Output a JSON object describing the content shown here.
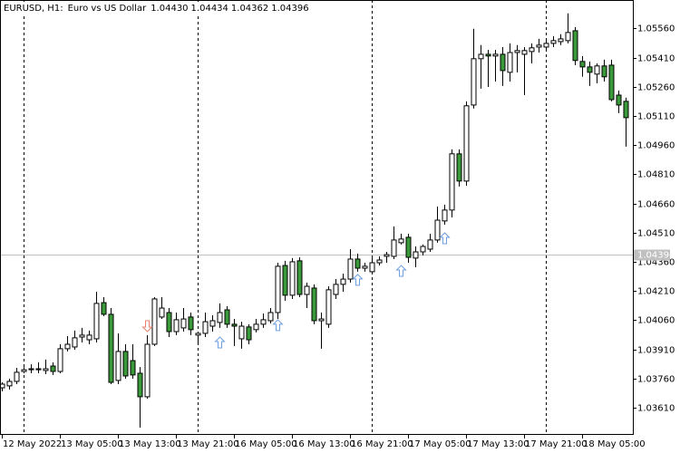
{
  "chart_data": {
    "type": "candlestick",
    "symbol": "EURUSD, H1:",
    "description": "Euro vs US Dollar",
    "ohlc_labels": [
      "1.04430",
      "1.04434",
      "1.04362",
      "1.04396"
    ],
    "categories": [
      "12 May 2022",
      null,
      null,
      null,
      null,
      null,
      null,
      null,
      "13 May 05:00",
      null,
      null,
      null,
      null,
      null,
      null,
      null,
      "13 May 13:00",
      null,
      null,
      null,
      null,
      null,
      null,
      null,
      "13 May 21:00",
      null,
      null,
      null,
      null,
      null,
      null,
      null,
      "16 May 05:00",
      null,
      null,
      null,
      null,
      null,
      null,
      null,
      "16 May 13:00",
      null,
      null,
      null,
      null,
      null,
      null,
      null,
      "16 May 21:00",
      null,
      null,
      null,
      null,
      null,
      null,
      null,
      "17 May 05:00",
      null,
      null,
      null,
      null,
      null,
      null,
      null,
      "17 May 13:00",
      null,
      null,
      null,
      null,
      null,
      null,
      null,
      "17 May 21:00",
      null,
      null,
      null,
      null,
      null,
      null,
      null,
      "18 May 05:00",
      null,
      null,
      null,
      null,
      null,
      null
    ],
    "open": [
      1.03712,
      1.03722,
      1.03745,
      1.03796,
      1.03805,
      1.03805,
      1.03801,
      1.03824,
      1.03796,
      1.03913,
      1.03922,
      1.03973,
      1.03959,
      1.03964,
      1.0415,
      1.0409,
      1.0375,
      1.03899,
      1.03852,
      1.03787,
      1.03666,
      1.03936,
      1.04076,
      1.04099,
      1.04001,
      1.0402,
      1.04076,
      1.03983,
      1.03992,
      1.04029,
      1.04048,
      1.04113,
      1.04039,
      1.03964,
      1.04025,
      1.04011,
      1.04039,
      1.04057,
      1.04099,
      1.04341,
      1.04188,
      1.04365,
      1.04192,
      1.04225,
      1.04057,
      1.04039,
      1.04192,
      1.04244,
      1.04271,
      1.04374,
      1.04327,
      1.04309,
      1.04355,
      1.04388,
      1.04388,
      1.04458,
      1.04486,
      1.04379,
      1.04411,
      1.04425,
      1.04472,
      1.0457,
      1.04626,
      1.04915,
      1.04775,
      1.05166,
      1.05404,
      1.05427,
      1.05418,
      1.05427,
      1.05334,
      1.05436,
      1.05427,
      1.05441,
      1.05464,
      1.05464,
      1.05483,
      1.05492,
      1.05497,
      1.05548,
      1.0539,
      1.05362,
      1.05325,
      1.05367,
      1.05371,
      1.05217,
      1.05185
    ],
    "high": [
      1.0374,
      1.03759,
      1.03815,
      1.03819,
      1.03833,
      1.03843,
      1.03857,
      1.03843,
      1.03936,
      1.03978,
      1.04006,
      1.0402,
      1.04006,
      1.04206,
      1.04178,
      1.04122,
      1.03992,
      1.03936,
      1.03936,
      1.03819,
      1.03983,
      1.04178,
      1.04178,
      1.04122,
      1.04099,
      1.04122,
      1.04099,
      1.04001,
      1.04099,
      1.04085,
      1.04146,
      1.04132,
      1.04066,
      1.04052,
      1.04039,
      1.04066,
      1.04094,
      1.04122,
      1.04355,
      1.04365,
      1.04379,
      1.04383,
      1.04253,
      1.04244,
      1.04099,
      1.04234,
      1.04271,
      1.04299,
      1.04425,
      1.04402,
      1.04355,
      1.04379,
      1.04388,
      1.04411,
      1.04542,
      1.04504,
      1.04504,
      1.04439,
      1.04449,
      1.04504,
      1.04644,
      1.04654,
      1.04938,
      1.04938,
      1.05185,
      1.05558,
      1.05474,
      1.0545,
      1.0545,
      1.05464,
      1.05483,
      1.05474,
      1.05464,
      1.05483,
      1.05506,
      1.05497,
      1.0552,
      1.0553,
      1.05637,
      1.05567,
      1.05418,
      1.0539,
      1.0538,
      1.05399,
      1.05399,
      1.05241,
      1.05204
    ],
    "low": [
      1.03694,
      1.03703,
      1.03731,
      1.03787,
      1.03787,
      1.03787,
      1.03782,
      1.03778,
      1.03787,
      1.03899,
      1.03908,
      1.03945,
      1.03936,
      1.03945,
      1.0408,
      1.03731,
      1.03731,
      1.03759,
      1.03759,
      1.03507,
      1.03656,
      1.03927,
      1.04066,
      1.03973,
      1.03983,
      1.04001,
      1.03983,
      1.03945,
      1.03973,
      1.04001,
      1.0402,
      1.0402,
      1.03927,
      1.03913,
      1.03936,
      1.03997,
      1.0402,
      1.04043,
      1.04066,
      1.0416,
      1.04169,
      1.04178,
      1.04122,
      1.04039,
      1.03913,
      1.0402,
      1.04169,
      1.04206,
      1.04253,
      1.04309,
      1.04309,
      1.04299,
      1.04341,
      1.04355,
      1.04374,
      1.04449,
      1.04355,
      1.04332,
      1.04393,
      1.04411,
      1.04458,
      1.04551,
      1.04588,
      1.04747,
      1.04751,
      1.05148,
      1.0525,
      1.05259,
      1.05287,
      1.05264,
      1.05287,
      1.05334,
      1.05217,
      1.0538,
      1.05436,
      1.0545,
      1.05464,
      1.05474,
      1.05483,
      1.05371,
      1.05311,
      1.05264,
      1.05278,
      1.05287,
      1.05185,
      1.05124,
      1.04952
    ],
    "close": [
      1.03731,
      1.03745,
      1.03792,
      1.03805,
      1.0381,
      1.0381,
      1.0381,
      1.03796,
      1.03913,
      1.03936,
      1.03969,
      1.03983,
      1.03983,
      1.04146,
      1.0409,
      1.0374,
      1.03899,
      1.03773,
      1.03778,
      1.03666,
      1.03936,
      1.04169,
      1.04122,
      1.04001,
      1.04062,
      1.04066,
      1.04011,
      1.03992,
      1.04052,
      1.04057,
      1.04099,
      1.04039,
      1.04029,
      1.04029,
      1.03959,
      1.04039,
      1.04062,
      1.04099,
      1.04337,
      1.04188,
      1.0436,
      1.04192,
      1.04234,
      1.04057,
      1.04066,
      1.04216,
      1.04244,
      1.04271,
      1.04374,
      1.04327,
      1.04337,
      1.04355,
      1.04369,
      1.04397,
      1.04472,
      1.04477,
      1.04383,
      1.04411,
      1.04439,
      1.04472,
      1.04574,
      1.04626,
      1.04915,
      1.04775,
      1.05162,
      1.05404,
      1.05427,
      1.05418,
      1.05427,
      1.05343,
      1.05436,
      1.05446,
      1.05446,
      1.0546,
      1.05474,
      1.05483,
      1.05497,
      1.05506,
      1.05539,
      1.05395,
      1.05362,
      1.05334,
      1.05367,
      1.05311,
      1.05194,
      1.05166,
      1.05101
    ],
    "up_color": "#ffffff",
    "down_color": "#3a9a3a",
    "wick_color": "#000000",
    "ylim": [
      1.0347,
      1.05706
    ],
    "yticks": [
      {
        "value": 1.0556,
        "label": "1.05560"
      },
      {
        "value": 1.0541,
        "label": "1.05410"
      },
      {
        "value": 1.0526,
        "label": "1.05260"
      },
      {
        "value": 1.0511,
        "label": "1.05110"
      },
      {
        "value": 1.0496,
        "label": "1.04960"
      },
      {
        "value": 1.0481,
        "label": "1.04810"
      },
      {
        "value": 1.0466,
        "label": "1.04660"
      },
      {
        "value": 1.0451,
        "label": "1.04510"
      },
      {
        "value": 1.0436,
        "label": "1.04360"
      },
      {
        "value": 1.0421,
        "label": "1.04210"
      },
      {
        "value": 1.0406,
        "label": "1.04060"
      },
      {
        "value": 1.0391,
        "label": "1.03910"
      },
      {
        "value": 1.0376,
        "label": "1.03760"
      },
      {
        "value": 1.0361,
        "label": "1.03610"
      }
    ],
    "current_price": {
      "value": 1.04396,
      "label": "1.04396"
    },
    "separators": [
      3,
      27,
      51,
      75
    ],
    "up_arrows": [
      {
        "index": 30,
        "price": 1.03945
      },
      {
        "index": 38,
        "price": 1.04034
      },
      {
        "index": 49,
        "price": 1.04267
      },
      {
        "index": 55,
        "price": 1.04313
      },
      {
        "index": 61,
        "price": 1.04481
      }
    ],
    "down_arrows": [
      {
        "index": 20,
        "price": 1.04029
      }
    ],
    "up_arrow_color": "#6f9fe0",
    "down_arrow_color": "#e8826e"
  }
}
